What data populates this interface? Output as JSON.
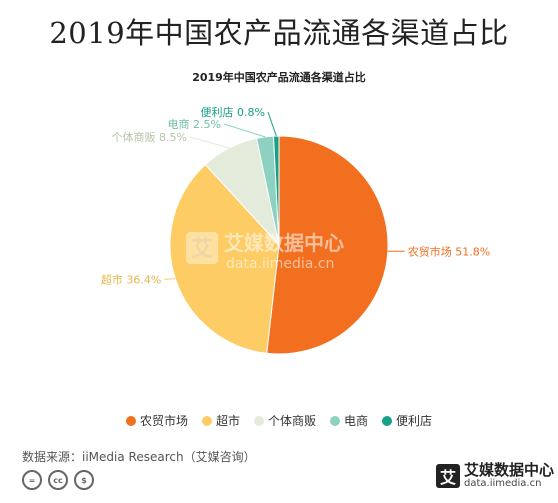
{
  "page": {
    "title": "2019年中国农产品流通各渠道占比",
    "source": "数据来源：iiMedia Research（艾媒咨询）"
  },
  "watermark": {
    "badge_char": "艾",
    "name": "艾媒数据中心",
    "url": "data.iimedia.cn"
  },
  "footer_brand": {
    "badge_char": "艾",
    "name": "艾媒数据中心",
    "url": "data.iimedia.cn"
  },
  "license_icons": [
    "=",
    "cc",
    "$"
  ],
  "chart_data": {
    "type": "pie",
    "title": "2019年中国农产品流通各渠道占比",
    "start_angle_deg": 0,
    "direction": "clockwise",
    "legend_position": "bottom",
    "slices": [
      {
        "label": "农贸市场",
        "value": 51.8,
        "display": "农贸市场 51.8%",
        "color": "#F26F1F"
      },
      {
        "label": "超市",
        "value": 36.4,
        "display": "超市 36.4%",
        "color": "#FDCC65"
      },
      {
        "label": "个体商贩",
        "value": 8.5,
        "display": "个体商贩 8.5%",
        "color": "#E3EBDA"
      },
      {
        "label": "电商",
        "value": 2.5,
        "display": "电商 2.5%",
        "color": "#8DD2C0"
      },
      {
        "label": "便利店",
        "value": 0.8,
        "display": "便利店 0.8%",
        "color": "#16A085"
      }
    ]
  }
}
